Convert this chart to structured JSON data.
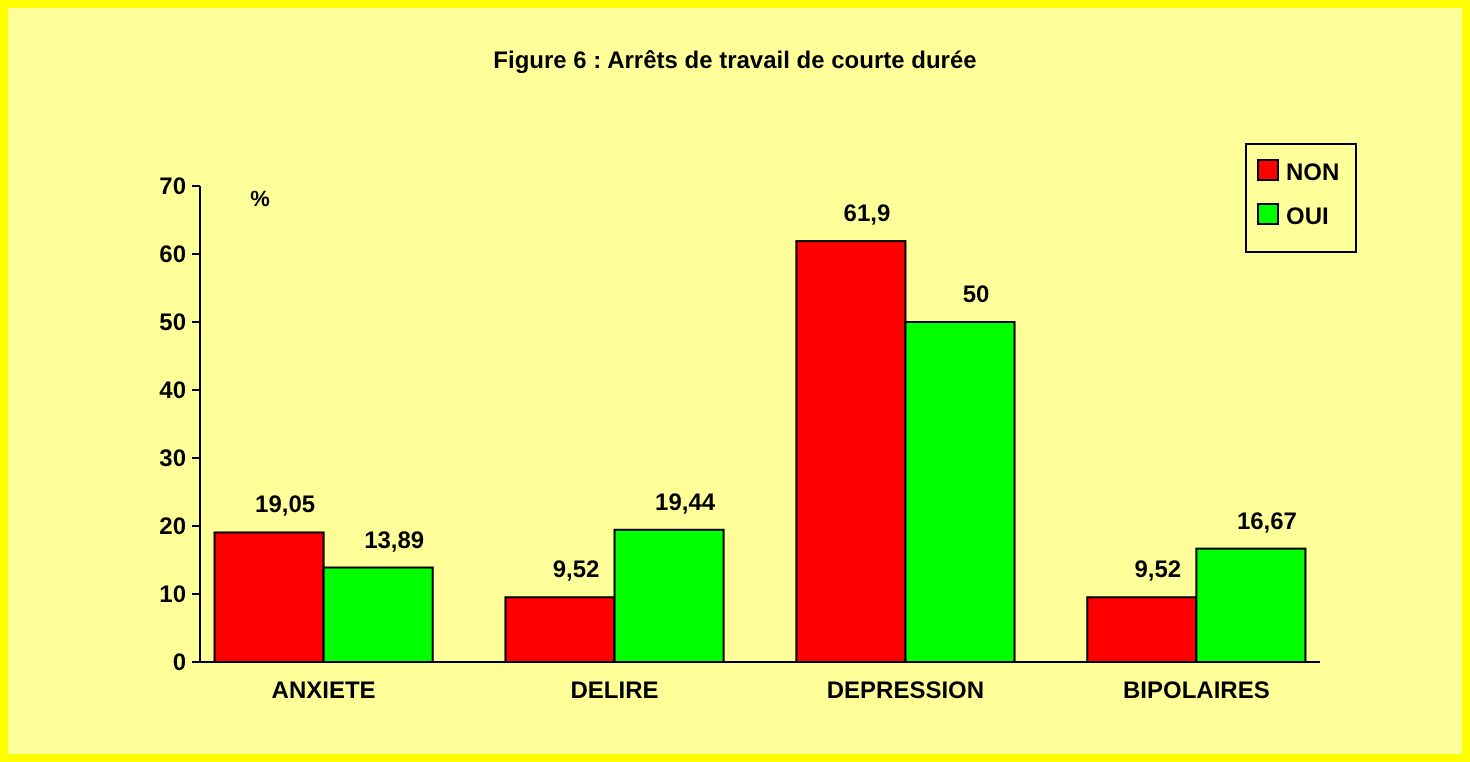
{
  "chart_data": {
    "type": "bar",
    "title": "Figure 6 : Arrêts de travail de courte durée",
    "ylabel": "%",
    "categories": [
      "ANXIETE",
      "DELIRE",
      "DEPRESSION",
      "BIPOLAIRES"
    ],
    "series": [
      {
        "name": "NON",
        "color": "#ff0000",
        "values": [
          19.05,
          9.52,
          61.9,
          9.52
        ],
        "value_labels": [
          "19,05",
          "9,52",
          "61,9",
          "9,52"
        ]
      },
      {
        "name": "OUI",
        "color": "#00ff00",
        "values": [
          13.89,
          19.44,
          50,
          16.67
        ],
        "value_labels": [
          "13,89",
          "19,44",
          "50",
          "16,67"
        ]
      }
    ],
    "ylim": [
      0,
      70
    ],
    "yticks": [
      0,
      10,
      20,
      30,
      40,
      50,
      60,
      70
    ],
    "grid": false,
    "legend": "top right"
  }
}
